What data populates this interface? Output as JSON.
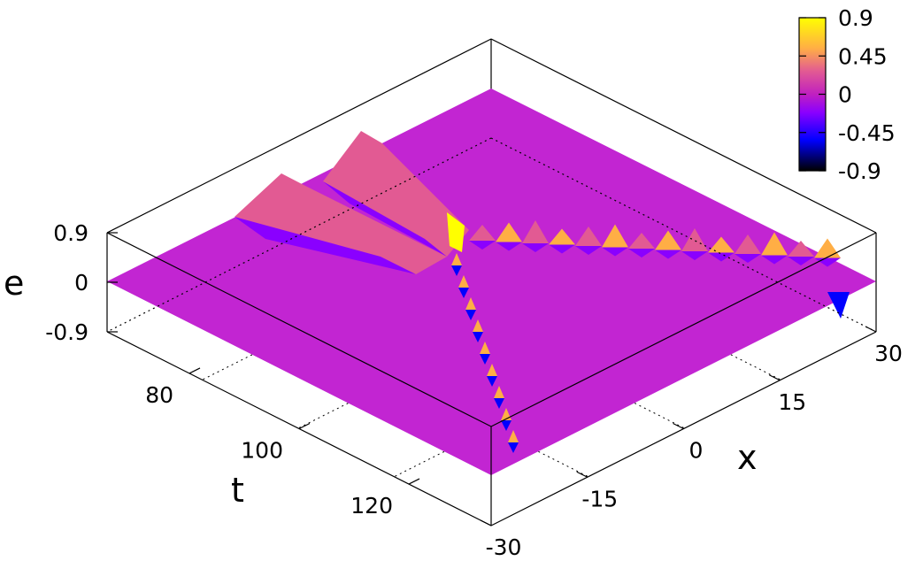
{
  "chart_data": {
    "type": "surface",
    "title": "",
    "xlabel": "x",
    "ylabel": "t",
    "zlabel": "e",
    "xlim": [
      -30,
      30
    ],
    "ylim": [
      65,
      135
    ],
    "zlim": [
      -0.9,
      0.9
    ],
    "x_ticks": [
      "-30",
      "-15",
      "0",
      "15",
      "30"
    ],
    "t_ticks": [
      "80",
      "100",
      "120"
    ],
    "z_ticks": [
      "0.9",
      "0",
      "-0.9"
    ],
    "colorbar": {
      "range": [
        -0.9,
        0.9
      ],
      "ticks": [
        "0.9",
        "0.45",
        "0",
        "-0.45",
        "-0.9"
      ],
      "colors": [
        "#000000",
        "#0000ff",
        "#8a00ff",
        "#c020c0",
        "#e25a93",
        "#ffae45",
        "#ffff00"
      ]
    },
    "colorbar_tick_values": [
      0.9,
      0.45,
      0,
      -0.45,
      -0.9
    ],
    "grid": true
  }
}
